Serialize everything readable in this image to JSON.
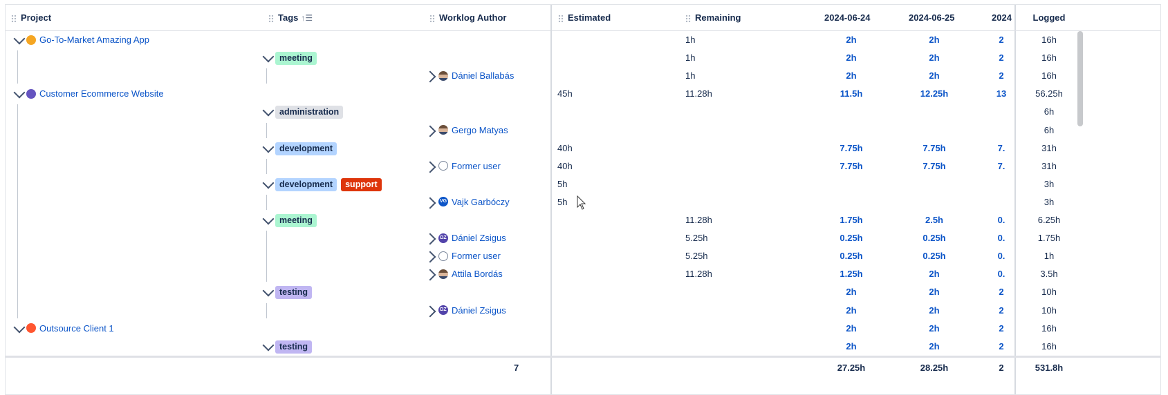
{
  "columns": {
    "project": "Project",
    "tags": "Tags",
    "author": "Worklog Author",
    "estimated": "Estimated",
    "remaining": "Remaining",
    "d1": "2024-06-24",
    "d2": "2024-06-25",
    "d3": "2024",
    "logged": "Logged"
  },
  "colors": {
    "link": "#0c55c8",
    "tag_meeting": "#abf5d1",
    "tag_administration": "#dfe1e6",
    "tag_development": "#b3d4ff",
    "tag_support": "#de350b",
    "tag_testing": "#c0b6f2"
  },
  "rows": [
    {
      "level": 0,
      "type": "project",
      "label": "Go-To-Market Amazing App",
      "icon": "app-icon",
      "est": "",
      "rem": "1h",
      "d1": "2h",
      "d2": "2h",
      "d3": "2",
      "logged": "16h"
    },
    {
      "level": 1,
      "type": "tag",
      "tags": [
        {
          "label": "meeting",
          "color": "#abf5d1",
          "text": "#172b4d"
        }
      ],
      "est": "",
      "rem": "1h",
      "d1": "2h",
      "d2": "2h",
      "d3": "2",
      "logged": "16h"
    },
    {
      "level": 2,
      "type": "author",
      "label": "Dániel Ballabás",
      "avatar": "photo",
      "est": "",
      "rem": "1h",
      "d1": "2h",
      "d2": "2h",
      "d3": "2",
      "logged": "16h"
    },
    {
      "level": 0,
      "type": "project",
      "label": "Customer Ecommerce Website",
      "icon": "cloud-icon",
      "est": "45h",
      "rem": "11.28h",
      "d1": "11.5h",
      "d2": "12.25h",
      "d3": "13",
      "logged": "56.25h"
    },
    {
      "level": 1,
      "type": "tag",
      "tags": [
        {
          "label": "administration",
          "color": "#dfe1e6",
          "text": "#172b4d"
        }
      ],
      "est": "",
      "rem": "",
      "d1": "",
      "d2": "",
      "d3": "",
      "logged": "6h"
    },
    {
      "level": 2,
      "type": "author",
      "label": "Gergo Matyas",
      "avatar": "photo",
      "est": "",
      "rem": "",
      "d1": "",
      "d2": "",
      "d3": "",
      "logged": "6h"
    },
    {
      "level": 1,
      "type": "tag",
      "tags": [
        {
          "label": "development",
          "color": "#b3d4ff",
          "text": "#172b4d"
        }
      ],
      "est": "40h",
      "rem": "",
      "d1": "7.75h",
      "d2": "7.75h",
      "d3": "7.",
      "logged": "31h"
    },
    {
      "level": 2,
      "type": "author",
      "label": "Former user",
      "avatar": "user",
      "est": "40h",
      "rem": "",
      "d1": "7.75h",
      "d2": "7.75h",
      "d3": "7.",
      "logged": "31h"
    },
    {
      "level": 1,
      "type": "tag",
      "tags": [
        {
          "label": "development",
          "color": "#b3d4ff",
          "text": "#172b4d"
        },
        {
          "label": "support",
          "color": "#de350b",
          "text": "#ffffff"
        }
      ],
      "est": "5h",
      "rem": "",
      "d1": "",
      "d2": "",
      "d3": "",
      "logged": "3h"
    },
    {
      "level": 2,
      "type": "author",
      "label": "Vajk Garbóczy",
      "avatar": "VG",
      "est": "5h",
      "rem": "",
      "d1": "",
      "d2": "",
      "d3": "",
      "logged": "3h"
    },
    {
      "level": 1,
      "type": "tag",
      "tags": [
        {
          "label": "meeting",
          "color": "#abf5d1",
          "text": "#172b4d"
        }
      ],
      "est": "",
      "rem": "11.28h",
      "d1": "1.75h",
      "d2": "2.5h",
      "d3": "0.",
      "logged": "6.25h"
    },
    {
      "level": 2,
      "type": "author",
      "label": "Dániel Zsigus",
      "avatar": "DZ",
      "est": "",
      "rem": "5.25h",
      "d1": "0.25h",
      "d2": "0.25h",
      "d3": "0.",
      "logged": "1.75h"
    },
    {
      "level": 2,
      "type": "author",
      "label": "Former user",
      "avatar": "user",
      "est": "",
      "rem": "5.25h",
      "d1": "0.25h",
      "d2": "0.25h",
      "d3": "0.",
      "logged": "1h"
    },
    {
      "level": 2,
      "type": "author",
      "label": "Attila Bordás",
      "avatar": "photo",
      "est": "",
      "rem": "11.28h",
      "d1": "1.25h",
      "d2": "2h",
      "d3": "0.",
      "logged": "3.5h"
    },
    {
      "level": 1,
      "type": "tag",
      "tags": [
        {
          "label": "testing",
          "color": "#c0b6f2",
          "text": "#172b4d"
        }
      ],
      "est": "",
      "rem": "",
      "d1": "2h",
      "d2": "2h",
      "d3": "2",
      "logged": "10h"
    },
    {
      "level": 2,
      "type": "author",
      "label": "Dániel Zsigus",
      "avatar": "DZ",
      "est": "",
      "rem": "",
      "d1": "2h",
      "d2": "2h",
      "d3": "2",
      "logged": "10h"
    },
    {
      "level": 0,
      "type": "project",
      "label": "Outsource Client 1",
      "icon": "rocket-icon",
      "est": "",
      "rem": "",
      "d1": "2h",
      "d2": "2h",
      "d3": "2",
      "logged": "16h"
    },
    {
      "level": 1,
      "type": "tag",
      "tags": [
        {
          "label": "testing",
          "color": "#c0b6f2",
          "text": "#172b4d"
        }
      ],
      "est": "",
      "rem": "",
      "d1": "2h",
      "d2": "2h",
      "d3": "2",
      "logged": "16h"
    }
  ],
  "footer": {
    "left_mark": "7",
    "d1": "27.25h",
    "d2": "28.25h",
    "d3": "2",
    "logged": "531.8h"
  }
}
